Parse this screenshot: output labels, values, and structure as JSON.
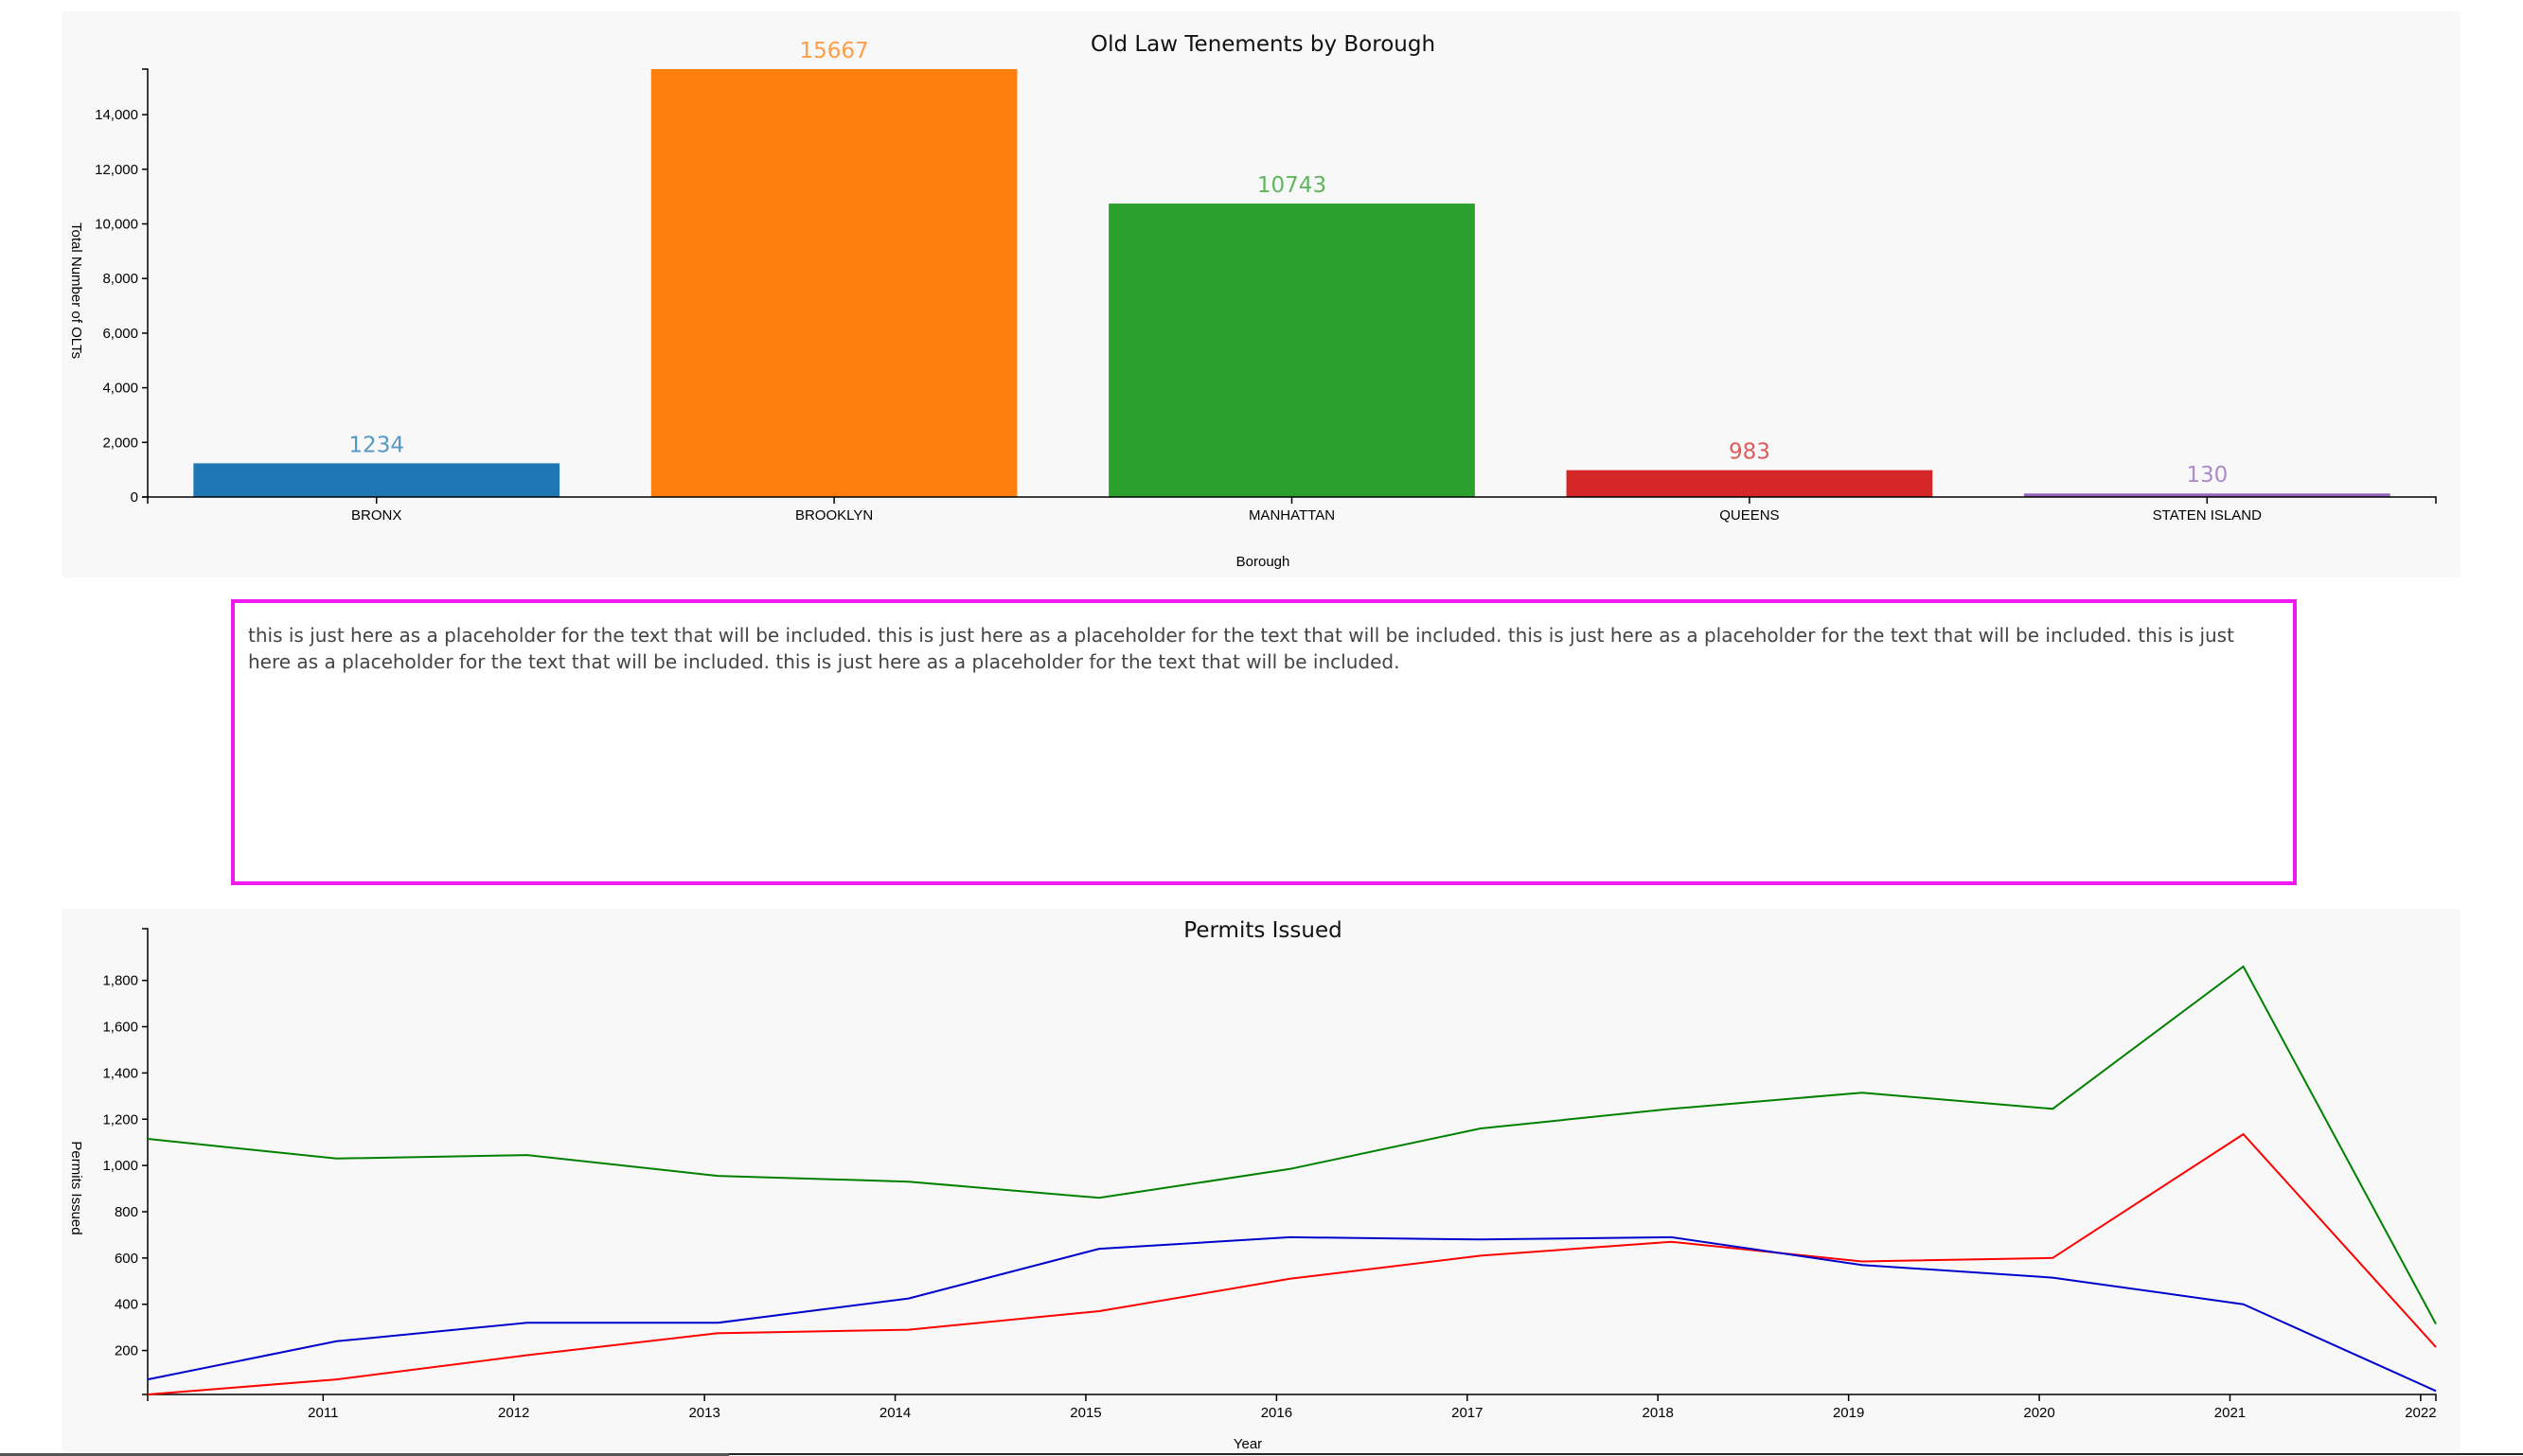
{
  "description_text": "this is just here as a placeholder for the text that will be included. this is just here as a placeholder for the text that will be included. this is just here as a placeholder for the text that will be included. this is just here as a placeholder for the text that will be included. this is just here as a placeholder for the text that will be included.",
  "chart_data": [
    {
      "type": "bar",
      "title": "Old Law Tenements by Borough",
      "xlabel": "Borough",
      "ylabel": "Total Number of OLTs",
      "categories": [
        "BRONX",
        "BROOKLYN",
        "MANHATTAN",
        "QUEENS",
        "STATEN ISLAND"
      ],
      "values": [
        1234,
        15667,
        10743,
        983,
        130
      ],
      "value_labels": [
        "1234",
        "15667",
        "10743",
        "983",
        "130"
      ],
      "colors": [
        "#1f77b4",
        "#ff7f0e",
        "#2ca02c",
        "#d62728",
        "#9467bd"
      ],
      "ylim": [
        0,
        15667
      ],
      "yticks": [
        0,
        2000,
        4000,
        6000,
        8000,
        10000,
        12000,
        14000
      ],
      "ytick_labels": [
        "0",
        "2,000",
        "4,000",
        "6,000",
        "8,000",
        "10,000",
        "12,000",
        "14,000"
      ],
      "grid": false
    },
    {
      "type": "line",
      "title": "Permits Issued",
      "xlabel": "Year",
      "ylabel": "Permits Issued",
      "x": [
        2010.08,
        2011,
        2012,
        2013,
        2014,
        2015,
        2016,
        2017,
        2018,
        2019,
        2020,
        2021,
        2022
      ],
      "xlim": [
        2010.08,
        2022.08
      ],
      "xticks": [
        2011,
        2012,
        2013,
        2014,
        2015,
        2016,
        2017,
        2018,
        2019,
        2020,
        2021,
        2022
      ],
      "xtick_labels": [
        "2011",
        "2012",
        "2013",
        "2014",
        "2015",
        "2016",
        "2017",
        "2018",
        "2019",
        "2020",
        "2021",
        "2022"
      ],
      "ylim": [
        10,
        1860
      ],
      "yticks": [
        200,
        400,
        600,
        800,
        1000,
        1200,
        1400,
        1600,
        1800
      ],
      "ytick_labels": [
        "200",
        "400",
        "600",
        "800",
        "1,000",
        "1,200",
        "1,400",
        "1,600",
        "1,800"
      ],
      "grid": false,
      "series": [
        {
          "color": "#008000",
          "x": [
            2010.08,
            2011.07,
            2012.07,
            2013.07,
            2014.07,
            2015.07,
            2016.07,
            2017.07,
            2018.07,
            2019.07,
            2020.07,
            2021.07,
            2022.08
          ],
          "values": [
            1115,
            1030,
            1045,
            955,
            930,
            860,
            985,
            1160,
            1245,
            1315,
            1245,
            1860,
            315
          ]
        },
        {
          "color": "#ff0000",
          "x": [
            2010.08,
            2011.07,
            2012.07,
            2013.07,
            2014.07,
            2015.07,
            2016.07,
            2017.07,
            2018.07,
            2019.07,
            2020.07,
            2021.07,
            2022.08
          ],
          "values": [
            10,
            75,
            180,
            275,
            290,
            370,
            510,
            610,
            670,
            585,
            600,
            1135,
            215
          ]
        },
        {
          "color": "#0000cc",
          "x": [
            2010.08,
            2011.07,
            2012.07,
            2013.07,
            2014.07,
            2015.07,
            2016.07,
            2017.07,
            2018.07,
            2019.07,
            2020.07,
            2021.07,
            2022.08
          ],
          "values": [
            75,
            240,
            320,
            320,
            425,
            640,
            690,
            680,
            690,
            570,
            515,
            400,
            25
          ]
        }
      ]
    }
  ]
}
